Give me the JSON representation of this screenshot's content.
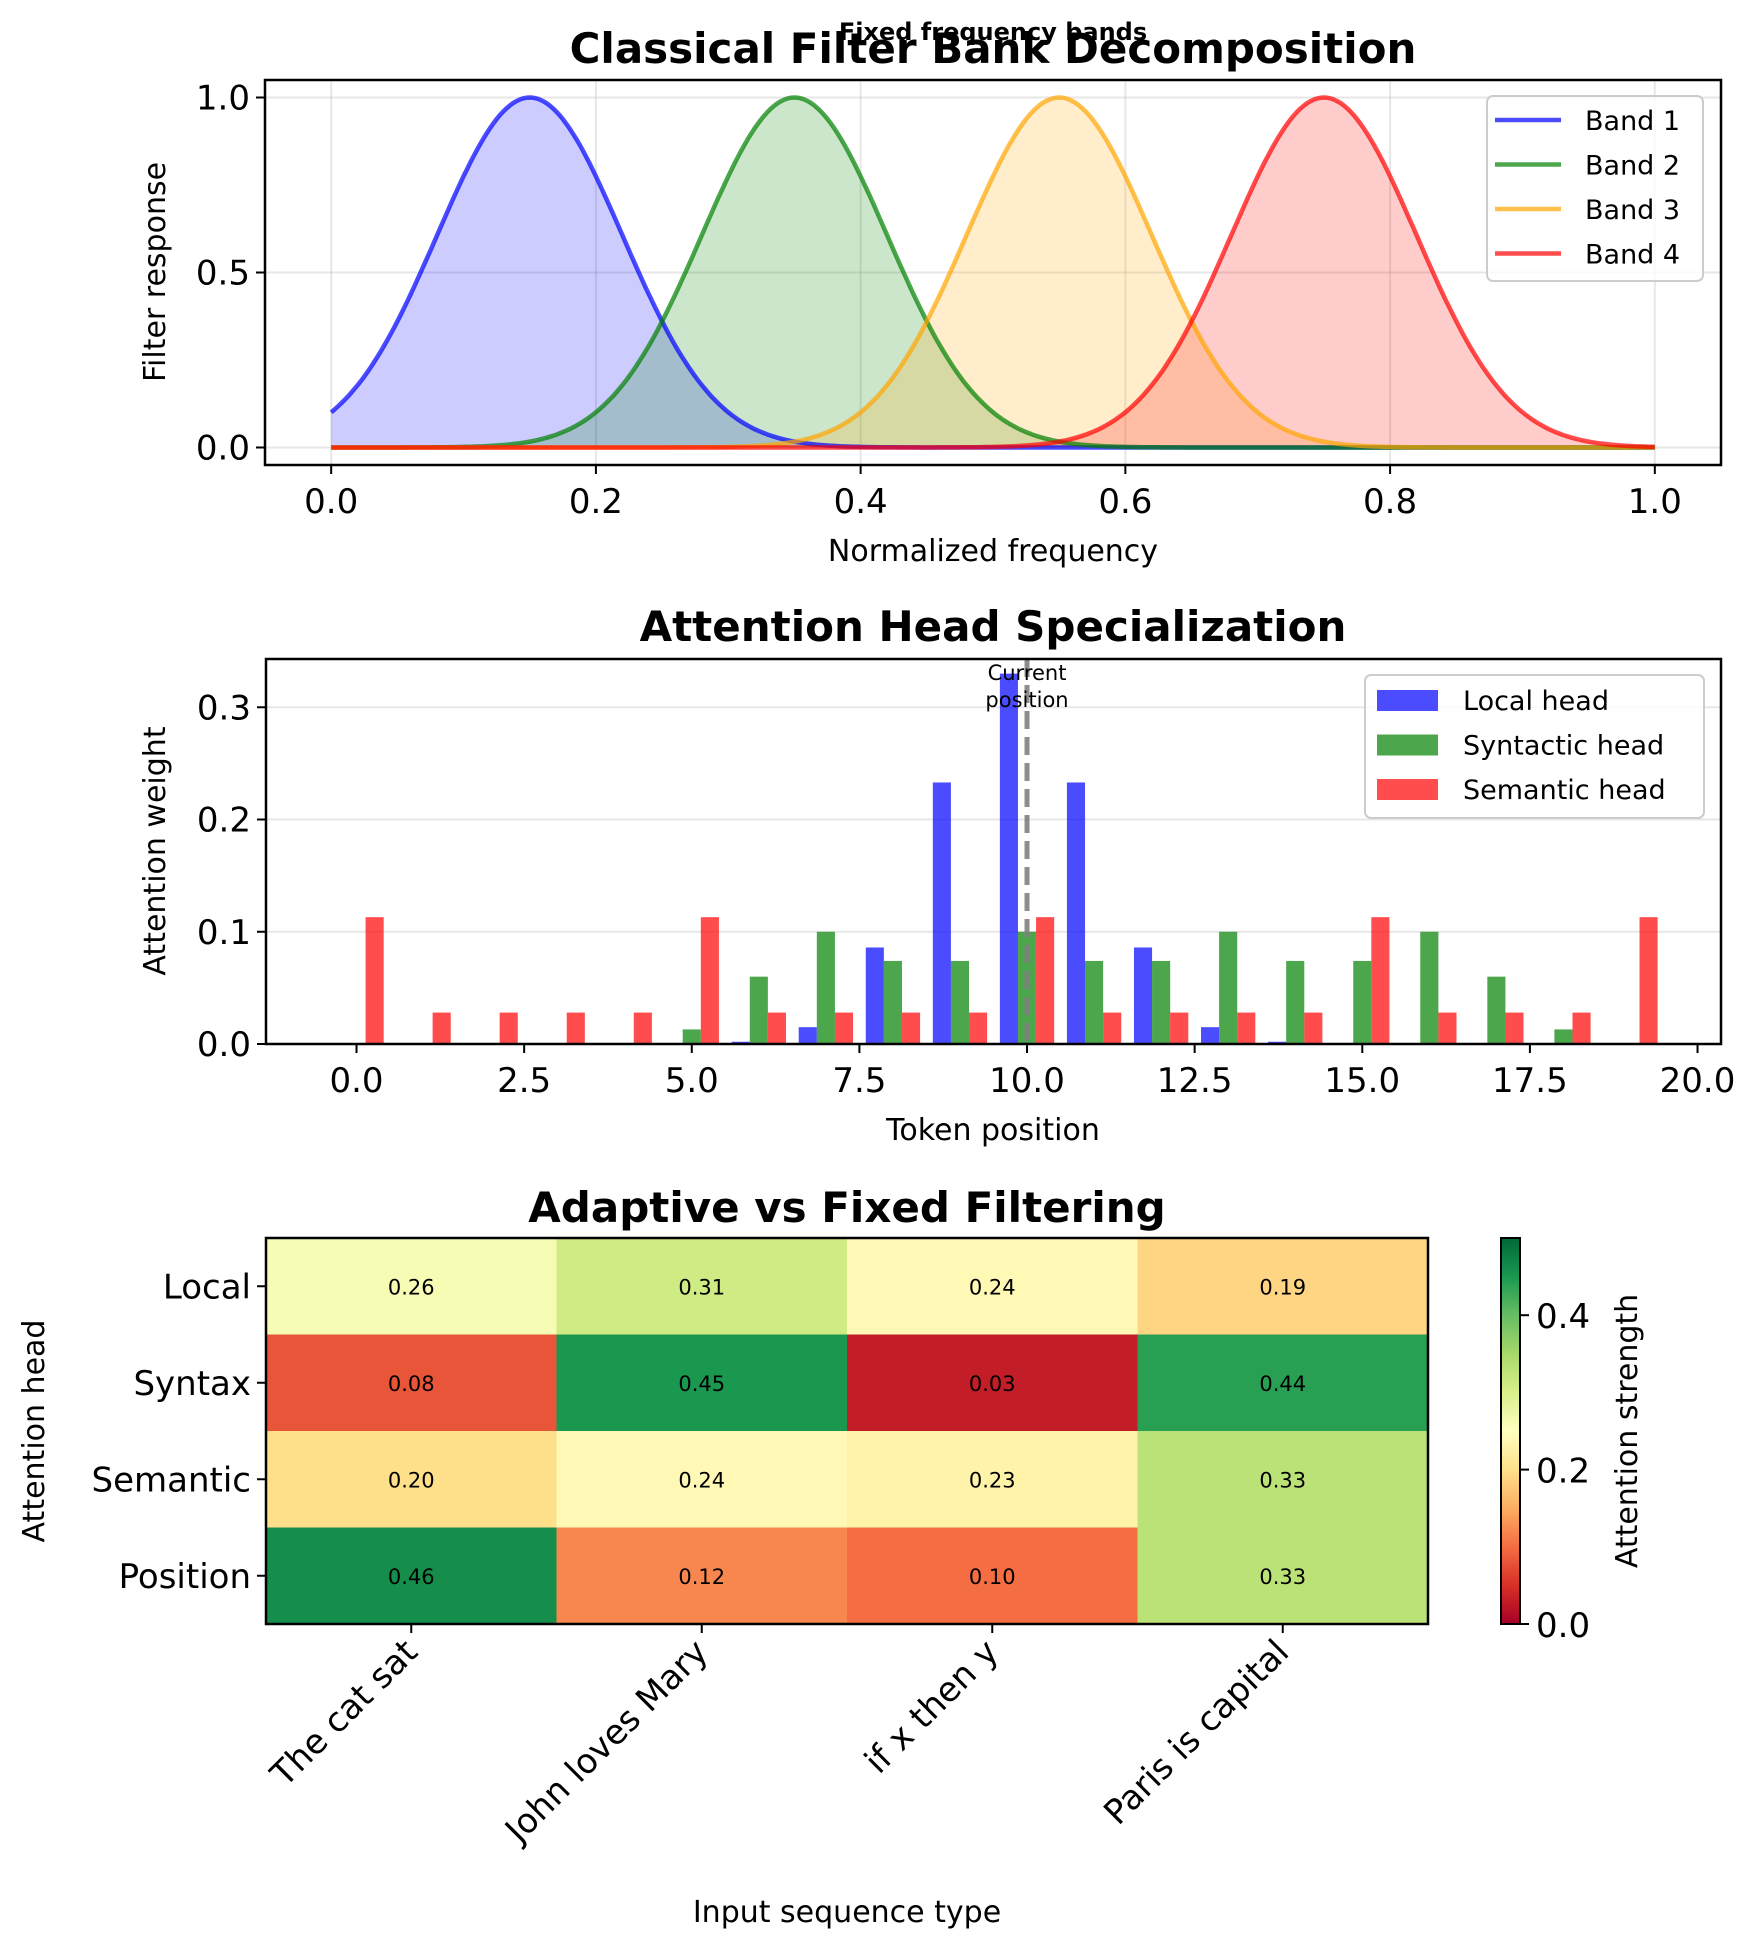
{
  "chart_data": [
    {
      "type": "line",
      "title": "Classical Filter Bank Decomposition",
      "subtitle": "Fixed frequency bands",
      "xlabel": "Normalized frequency",
      "ylabel": "Filter response",
      "xlim": [
        -0.05,
        1.05
      ],
      "ylim": [
        -0.05,
        1.05
      ],
      "xticks": [
        "0.0",
        "0.2",
        "0.4",
        "0.6",
        "0.8",
        "1.0"
      ],
      "xtick_values": [
        0.0,
        0.2,
        0.4,
        0.6,
        0.8,
        1.0
      ],
      "yticks": [
        "0.0",
        "0.5",
        "1.0"
      ],
      "ytick_values": [
        0.0,
        0.5,
        1.0
      ],
      "grid": true,
      "legend_position": "top-right",
      "curve_shape": "gaussian",
      "x_range": [
        0.0,
        1.0
      ],
      "series": [
        {
          "name": "Band 1",
          "center": 0.15,
          "sigma": 0.07,
          "peak": 1.0,
          "color": "#0000ff",
          "fill": true
        },
        {
          "name": "Band 2",
          "center": 0.35,
          "sigma": 0.07,
          "peak": 1.0,
          "color": "#008000",
          "fill": true
        },
        {
          "name": "Band 3",
          "center": 0.55,
          "sigma": 0.07,
          "peak": 1.0,
          "color": "#ffa500",
          "fill": true
        },
        {
          "name": "Band 4",
          "center": 0.75,
          "sigma": 0.07,
          "peak": 1.0,
          "color": "#ff0000",
          "fill": true
        }
      ]
    },
    {
      "type": "bar",
      "title": "Attention Head Specialization",
      "xlabel": "Token position",
      "ylabel": "Attention weight",
      "xlim": [
        -1.35,
        20.35
      ],
      "ylim": [
        0,
        0.343
      ],
      "xticks": [
        "0.0",
        "2.5",
        "5.0",
        "7.5",
        "10.0",
        "12.5",
        "15.0",
        "17.5",
        "20.0"
      ],
      "xtick_values": [
        0,
        2.5,
        5,
        7.5,
        10,
        12.5,
        15,
        17.5,
        20
      ],
      "yticks": [
        "0.0",
        "0.1",
        "0.2",
        "0.3"
      ],
      "ytick_values": [
        0.0,
        0.1,
        0.2,
        0.3
      ],
      "grid": true,
      "legend_position": "top-right",
      "bar_width": 0.27,
      "x": [
        0,
        1,
        2,
        3,
        4,
        5,
        6,
        7,
        8,
        9,
        10,
        11,
        12,
        13,
        14,
        15,
        16,
        17,
        18,
        19
      ],
      "series": [
        {
          "name": "Local head",
          "color": "#0000ff",
          "offset": -0.27,
          "values": [
            0,
            0,
            0,
            0,
            0,
            0,
            0.002,
            0.015,
            0.086,
            0.233,
            0.33,
            0.233,
            0.086,
            0.015,
            0.002,
            0,
            0,
            0,
            0,
            0
          ]
        },
        {
          "name": "Syntactic head",
          "color": "#008000",
          "offset": 0,
          "values": [
            0,
            0,
            0,
            0,
            0,
            0.013,
            0.06,
            0.1,
            0.074,
            0.074,
            0.1,
            0.074,
            0.074,
            0.1,
            0.074,
            0.074,
            0.1,
            0.06,
            0.013,
            0
          ]
        },
        {
          "name": "Semantic head",
          "color": "#ff0000",
          "offset": 0.27,
          "values": [
            0.113,
            0.028,
            0.028,
            0.028,
            0.028,
            0.113,
            0.028,
            0.028,
            0.028,
            0.028,
            0.113,
            0.028,
            0.028,
            0.028,
            0.028,
            0.113,
            0.028,
            0.028,
            0.028,
            0.113
          ]
        }
      ],
      "vline": {
        "x": 10,
        "style": "dashed",
        "color": "#808080"
      },
      "annotation": {
        "lines": [
          "Current",
          "position"
        ],
        "x": 10,
        "y": 0.31
      }
    },
    {
      "type": "heatmap",
      "title": "Adaptive vs Fixed Filtering",
      "xlabel": "Input sequence type",
      "ylabel": "Attention head",
      "colormap": "RdYlGn",
      "vmin": 0.0,
      "vmax": 0.5,
      "colorbar_label": "Attention strength",
      "colorbar_ticks": [
        "0.0",
        "0.2",
        "0.4"
      ],
      "colorbar_tick_values": [
        0.0,
        0.2,
        0.4
      ],
      "columns": [
        "The cat sat",
        "John loves Mary",
        "if x then y",
        "Paris is capital"
      ],
      "rows": [
        "Local",
        "Syntax",
        "Semantic",
        "Position"
      ],
      "values": [
        [
          0.26,
          0.31,
          0.24,
          0.19
        ],
        [
          0.08,
          0.45,
          0.03,
          0.44
        ],
        [
          0.2,
          0.24,
          0.23,
          0.33
        ],
        [
          0.46,
          0.12,
          0.1,
          0.33
        ]
      ],
      "labels": [
        [
          "0.26",
          "0.31",
          "0.24",
          "0.19"
        ],
        [
          "0.08",
          "0.45",
          "0.03",
          "0.44"
        ],
        [
          "0.20",
          "0.24",
          "0.23",
          "0.33"
        ],
        [
          "0.46",
          "0.12",
          "0.10",
          "0.33"
        ]
      ]
    }
  ]
}
